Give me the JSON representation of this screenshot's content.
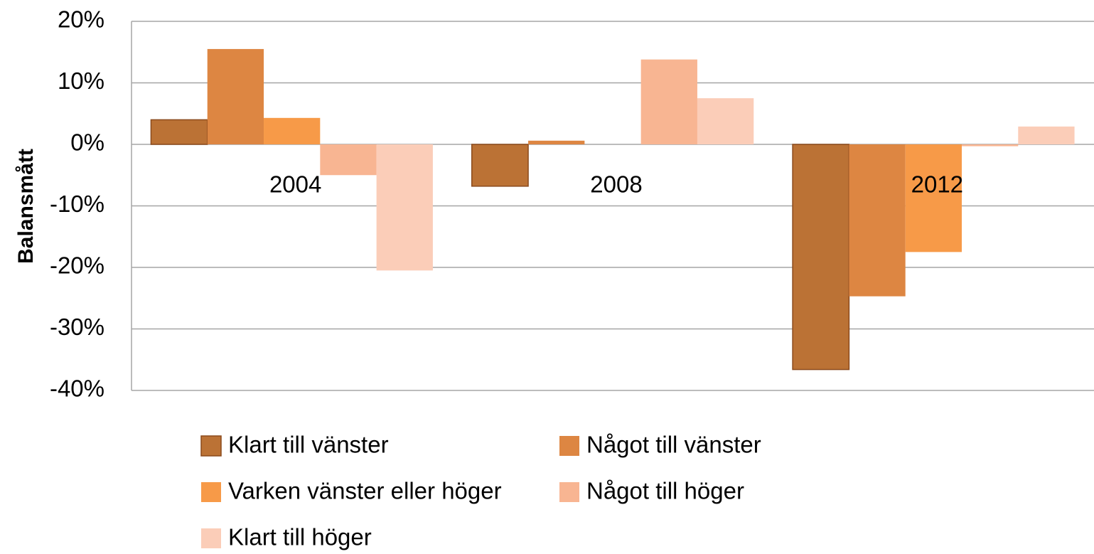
{
  "chart_data": {
    "type": "bar",
    "y_label": "Balansmått",
    "categories": [
      "2004",
      "2008",
      "2012"
    ],
    "series": [
      {
        "name": "Klart till vänster",
        "color": "#bb7235",
        "values": [
          4.0,
          -6.8,
          -36.6
        ]
      },
      {
        "name": "Något till vänster",
        "color": "#dd8642",
        "values": [
          15.5,
          0.6,
          -24.7
        ]
      },
      {
        "name": "Varken vänster eller höger",
        "color": "#f79a48",
        "values": [
          4.3,
          0,
          -17.5
        ]
      },
      {
        "name": "Något till höger",
        "color": "#f8b592",
        "values": [
          -5.0,
          13.8,
          -0.3
        ]
      },
      {
        "name": "Klart till höger",
        "color": "#fbcdb8",
        "values": [
          -20.5,
          7.5,
          2.9
        ]
      }
    ],
    "ylim": [
      -40,
      20
    ],
    "yticks": [
      {
        "value": -40,
        "label": "-40%"
      },
      {
        "value": -30,
        "label": "-30%"
      },
      {
        "value": -20,
        "label": "-20%"
      },
      {
        "value": -10,
        "label": "-10%"
      },
      {
        "value": 0,
        "label": "0%"
      },
      {
        "value": 10,
        "label": "10%"
      },
      {
        "value": 20,
        "label": "20%"
      }
    ],
    "grid": true,
    "legend": "bottom"
  }
}
